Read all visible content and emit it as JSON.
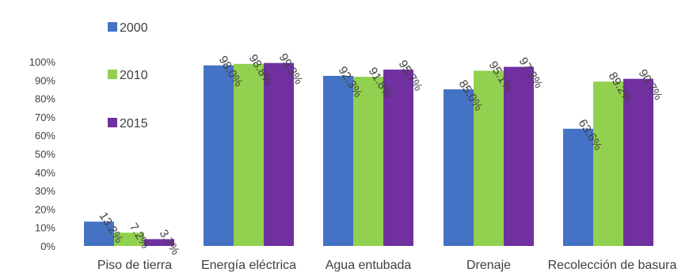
{
  "chart_data": {
    "type": "bar",
    "categories": [
      "Piso de tierra",
      "Energía eléctrica",
      "Agua entubada",
      "Drenaje",
      "Recolección de basura"
    ],
    "series": [
      {
        "name": "2000",
        "color": "#4472C4",
        "values": [
          13.2,
          98.0,
          92.3,
          85.0,
          63.6
        ],
        "labels": [
          "13.2%",
          "98.0%",
          "92.3%",
          "85.0%",
          "63.6%"
        ]
      },
      {
        "name": "2010",
        "color": "#92D050",
        "values": [
          7.2,
          98.8,
          91.8,
          95.1,
          89.2
        ],
        "labels": [
          "7.2%",
          "98.8%",
          "91.8%",
          "95.1%",
          "89.2%"
        ]
      },
      {
        "name": "2015",
        "color": "#7030A0",
        "values": [
          3.7,
          99.3,
          95.7,
          97.2,
          90.7
        ],
        "labels": [
          "3.7%",
          "99.3%",
          "95.7%",
          "97.2%",
          "90.7%"
        ]
      }
    ],
    "y_ticks": [
      "0%",
      "10%",
      "20%",
      "30%",
      "40%",
      "50%",
      "60%",
      "70%",
      "80%",
      "90%",
      "100%"
    ],
    "ylim": [
      0,
      100
    ],
    "grid": false,
    "legend_position": "left",
    "title": "",
    "xlabel": "",
    "ylabel": ""
  }
}
